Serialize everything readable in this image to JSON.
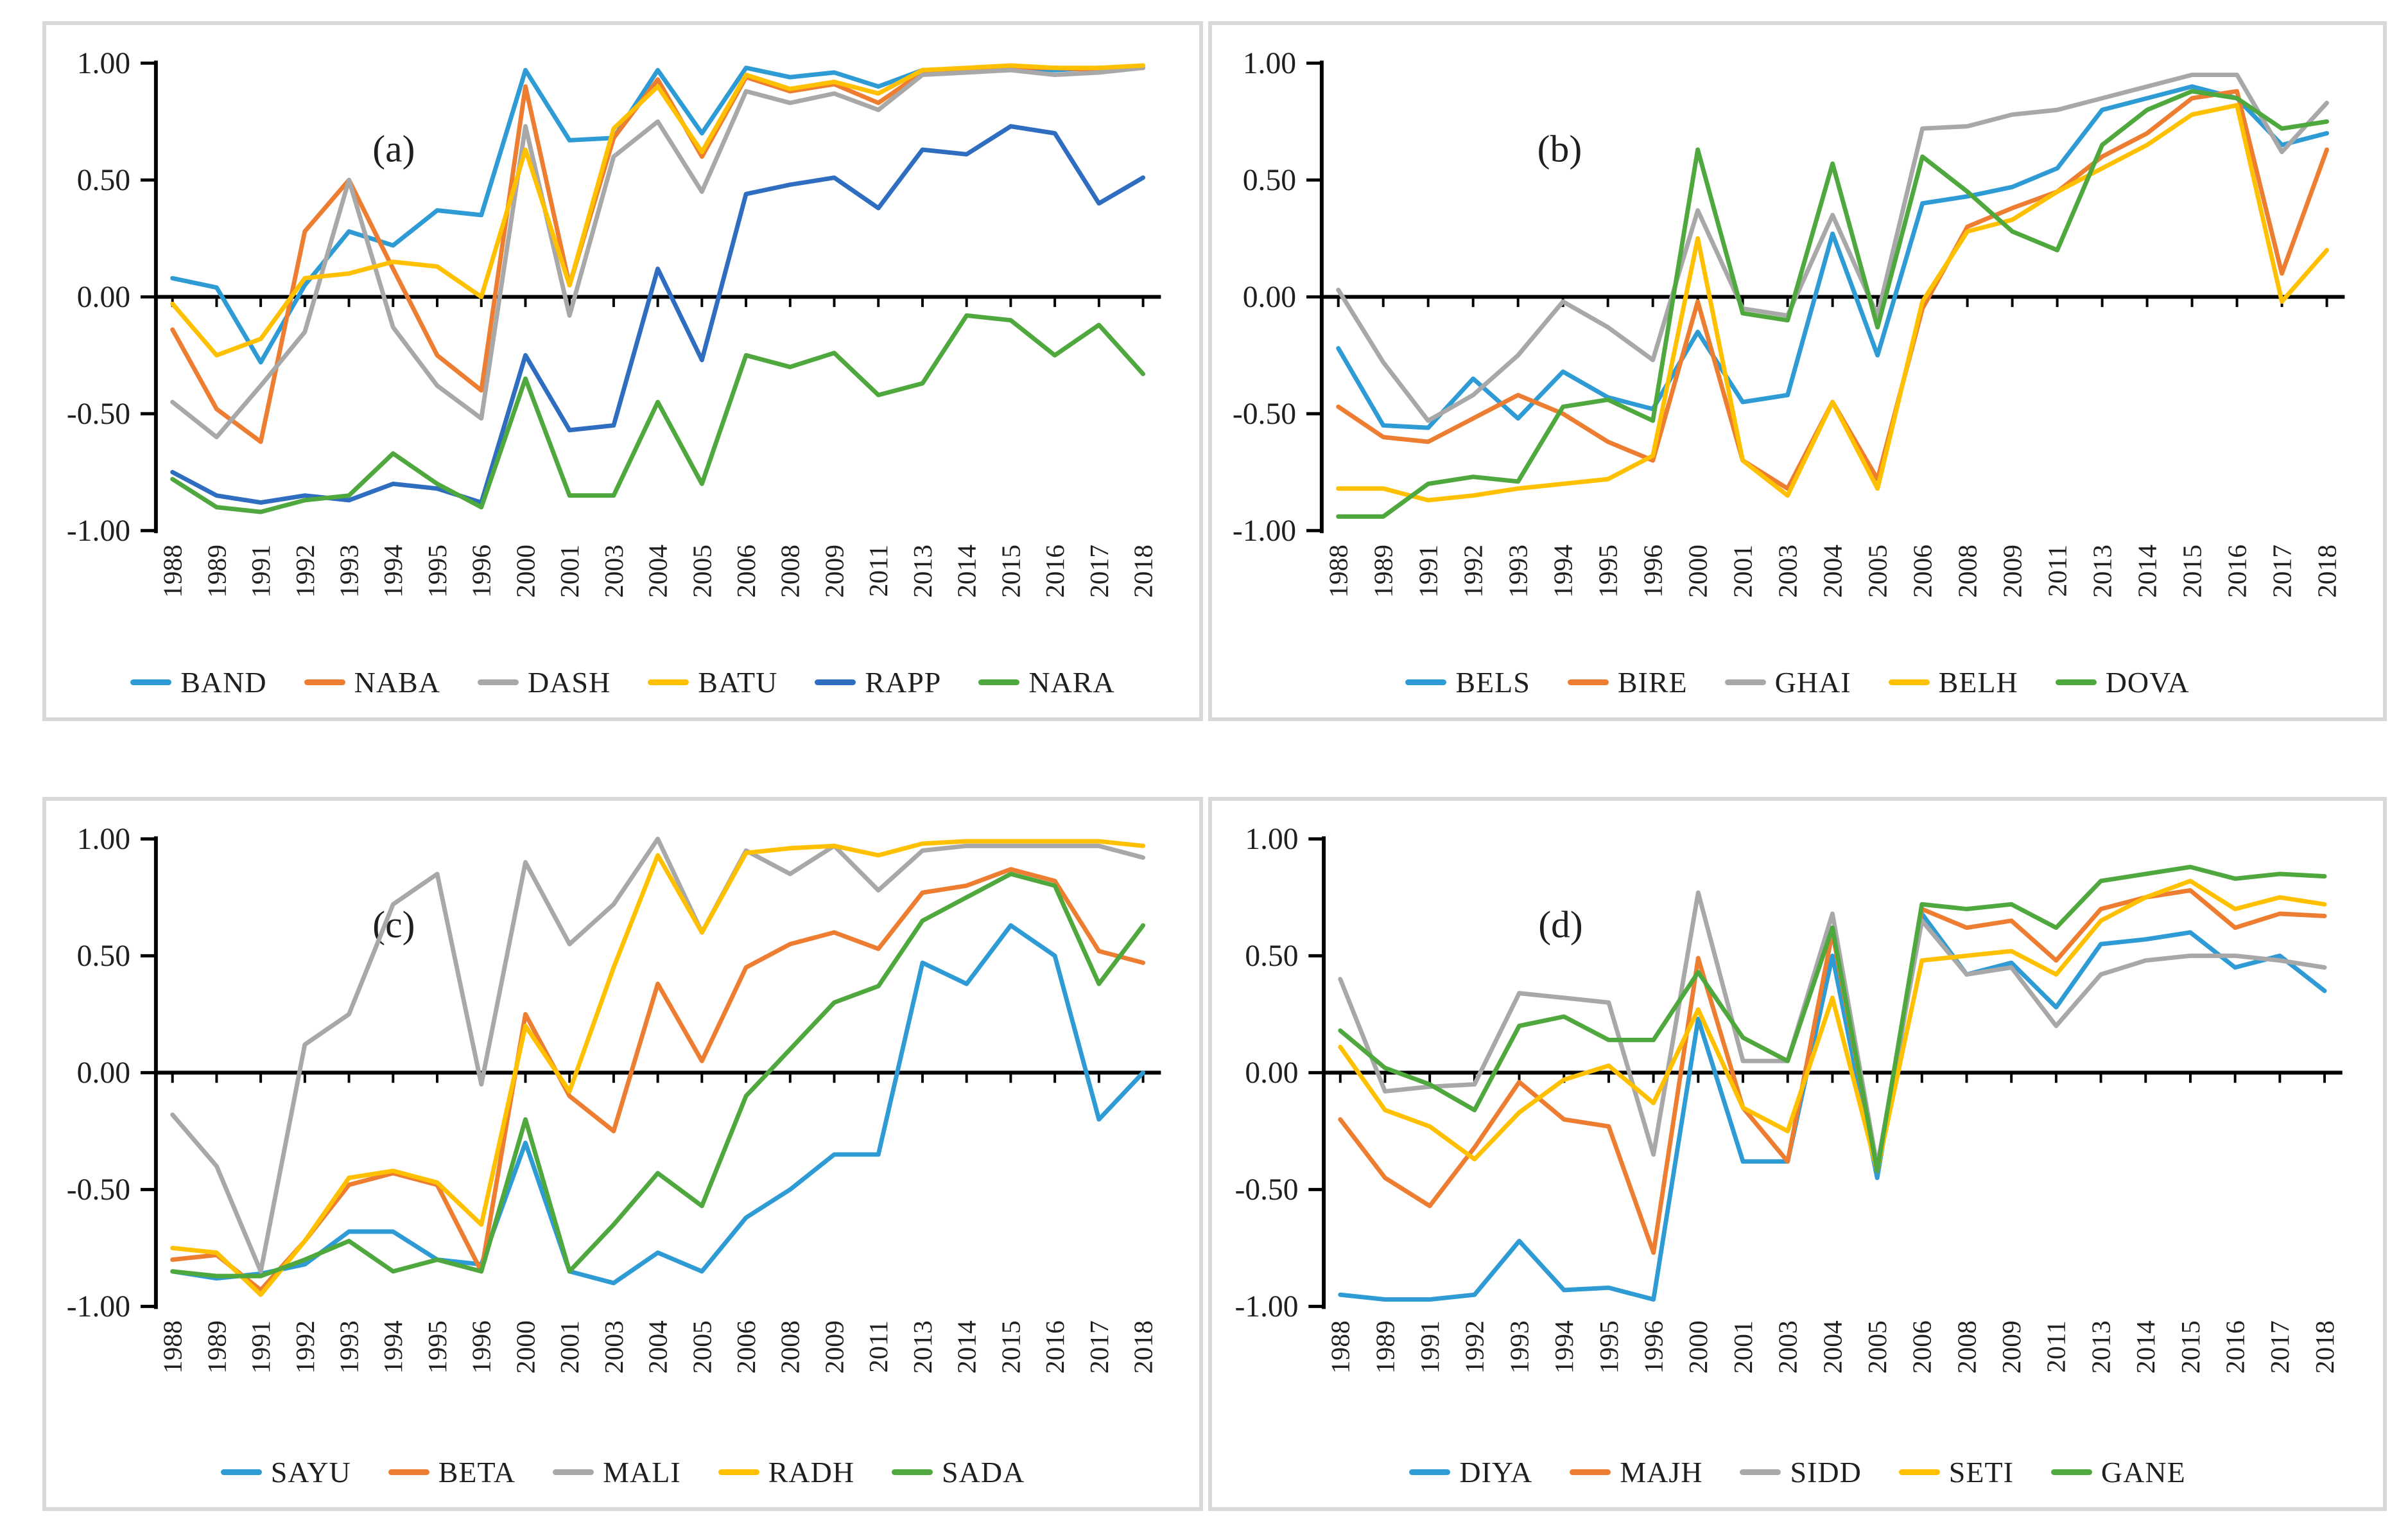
{
  "page": {
    "background": "#ffffff",
    "panel_border_color": "#d9d9d9"
  },
  "colors": {
    "light_blue": "#2E9BD5",
    "orange": "#ED7D31",
    "gray": "#A8A8A8",
    "gold": "#FFC000",
    "blue": "#2E6DBF",
    "green": "#4FA83D",
    "axis": "#000000",
    "text": "#1f1f1f"
  },
  "chart_data": [
    {
      "type": "line",
      "panel_label": "(a)",
      "legend_position": "bottom",
      "grid": false,
      "ylim": [
        -1.0,
        1.0
      ],
      "y_tick_labels": [
        "1.00",
        "0.50",
        "0.00",
        "-0.50",
        "-1.00"
      ],
      "y_tick_values": [
        1.0,
        0.5,
        0.0,
        -0.5,
        -1.0
      ],
      "x": [
        "1988",
        "1989",
        "1991",
        "1992",
        "1993",
        "1994",
        "1995",
        "1996",
        "2000",
        "2001",
        "2003",
        "2004",
        "2005",
        "2006",
        "2008",
        "2009",
        "2011",
        "2013",
        "2014",
        "2015",
        "2016",
        "2017",
        "2018"
      ],
      "series": [
        {
          "name": "BAND",
          "color": "#2E9BD5",
          "values": [
            0.08,
            0.04,
            -0.28,
            0.05,
            0.28,
            0.22,
            0.37,
            0.35,
            0.97,
            0.67,
            0.68,
            0.97,
            0.7,
            0.98,
            0.94,
            0.96,
            0.9,
            0.97,
            0.97,
            0.98,
            0.97,
            0.98,
            0.98
          ]
        },
        {
          "name": "NABA",
          "color": "#ED7D31",
          "values": [
            -0.14,
            -0.48,
            -0.62,
            0.28,
            0.5,
            0.12,
            -0.25,
            -0.4,
            0.9,
            0.05,
            0.68,
            0.93,
            0.6,
            0.94,
            0.88,
            0.91,
            0.83,
            0.96,
            0.97,
            0.98,
            0.98,
            0.97,
            0.98
          ]
        },
        {
          "name": "DASH",
          "color": "#A8A8A8",
          "values": [
            -0.45,
            -0.6,
            -0.38,
            -0.15,
            0.5,
            -0.13,
            -0.38,
            -0.52,
            0.73,
            -0.08,
            0.6,
            0.75,
            0.45,
            0.88,
            0.83,
            0.87,
            0.8,
            0.95,
            0.96,
            0.97,
            0.95,
            0.96,
            0.98
          ]
        },
        {
          "name": "BATU",
          "color": "#FFC000",
          "values": [
            -0.03,
            -0.25,
            -0.18,
            0.08,
            0.1,
            0.15,
            0.13,
            0.0,
            0.63,
            0.05,
            0.72,
            0.9,
            0.62,
            0.95,
            0.89,
            0.92,
            0.87,
            0.97,
            0.98,
            0.99,
            0.98,
            0.98,
            0.99
          ]
        },
        {
          "name": "RAPP",
          "color": "#2E6DBF",
          "values": [
            -0.75,
            -0.85,
            -0.88,
            -0.85,
            -0.87,
            -0.8,
            -0.82,
            -0.88,
            -0.25,
            -0.57,
            -0.55,
            0.12,
            -0.27,
            0.44,
            0.48,
            0.51,
            0.38,
            0.63,
            0.61,
            0.73,
            0.7,
            0.4,
            0.51
          ]
        },
        {
          "name": "NARA",
          "color": "#4FA83D",
          "values": [
            -0.78,
            -0.9,
            -0.92,
            -0.87,
            -0.85,
            -0.67,
            -0.8,
            -0.9,
            -0.35,
            -0.85,
            -0.85,
            -0.45,
            -0.8,
            -0.25,
            -0.3,
            -0.24,
            -0.42,
            -0.37,
            -0.08,
            -0.1,
            -0.25,
            -0.12,
            -0.33
          ]
        }
      ]
    },
    {
      "type": "line",
      "panel_label": "(b)",
      "legend_position": "bottom",
      "grid": false,
      "ylim": [
        -1.0,
        1.0
      ],
      "y_tick_labels": [
        "1.00",
        "0.50",
        "0.00",
        "-0.50",
        "-1.00"
      ],
      "y_tick_values": [
        1.0,
        0.5,
        0.0,
        -0.5,
        -1.0
      ],
      "x": [
        "1988",
        "1989",
        "1991",
        "1992",
        "1993",
        "1994",
        "1995",
        "1996",
        "2000",
        "2001",
        "2003",
        "2004",
        "2005",
        "2006",
        "2008",
        "2009",
        "2011",
        "2013",
        "2014",
        "2015",
        "2016",
        "2017",
        "2018"
      ],
      "series": [
        {
          "name": "BELS",
          "color": "#2E9BD5",
          "values": [
            -0.22,
            -0.55,
            -0.56,
            -0.35,
            -0.52,
            -0.32,
            -0.43,
            -0.48,
            -0.15,
            -0.45,
            -0.42,
            0.27,
            -0.25,
            0.4,
            0.43,
            0.47,
            0.55,
            0.8,
            0.85,
            0.9,
            0.85,
            0.65,
            0.7
          ]
        },
        {
          "name": "BIRE",
          "color": "#ED7D31",
          "values": [
            -0.47,
            -0.6,
            -0.62,
            -0.52,
            -0.42,
            -0.5,
            -0.62,
            -0.7,
            -0.02,
            -0.7,
            -0.82,
            -0.45,
            -0.78,
            -0.05,
            0.3,
            0.38,
            0.45,
            0.6,
            0.7,
            0.85,
            0.88,
            0.1,
            0.63
          ]
        },
        {
          "name": "GHAI",
          "color": "#A8A8A8",
          "values": [
            0.03,
            -0.28,
            -0.53,
            -0.42,
            -0.25,
            -0.02,
            -0.13,
            -0.27,
            0.37,
            -0.05,
            -0.08,
            0.35,
            -0.08,
            0.72,
            0.73,
            0.78,
            0.8,
            0.85,
            0.9,
            0.95,
            0.95,
            0.62,
            0.83
          ]
        },
        {
          "name": "BELH",
          "color": "#FFC000",
          "values": [
            -0.82,
            -0.82,
            -0.87,
            -0.85,
            -0.82,
            -0.8,
            -0.78,
            -0.68,
            0.25,
            -0.7,
            -0.85,
            -0.45,
            -0.82,
            -0.02,
            0.28,
            0.33,
            0.45,
            0.55,
            0.65,
            0.78,
            0.82,
            -0.02,
            0.2
          ]
        },
        {
          "name": "DOVA",
          "color": "#4FA83D",
          "values": [
            -0.94,
            -0.94,
            -0.8,
            -0.77,
            -0.79,
            -0.47,
            -0.44,
            -0.53,
            0.63,
            -0.07,
            -0.1,
            0.57,
            -0.13,
            0.6,
            0.45,
            0.28,
            0.2,
            0.65,
            0.8,
            0.88,
            0.85,
            0.72,
            0.75
          ]
        }
      ]
    },
    {
      "type": "line",
      "panel_label": "(c)",
      "legend_position": "bottom",
      "grid": false,
      "ylim": [
        -1.0,
        1.0
      ],
      "y_tick_labels": [
        "1.00",
        "0.50",
        "0.00",
        "-0.50",
        "-1.00"
      ],
      "y_tick_values": [
        1.0,
        0.5,
        0.0,
        -0.5,
        -1.0
      ],
      "x": [
        "1988",
        "1989",
        "1991",
        "1992",
        "1993",
        "1994",
        "1995",
        "1996",
        "2000",
        "2001",
        "2003",
        "2004",
        "2005",
        "2006",
        "2008",
        "2009",
        "2011",
        "2013",
        "2014",
        "2015",
        "2016",
        "2017",
        "2018"
      ],
      "series": [
        {
          "name": "SAYU",
          "color": "#2E9BD5",
          "values": [
            -0.85,
            -0.88,
            -0.86,
            -0.82,
            -0.68,
            -0.68,
            -0.8,
            -0.82,
            -0.3,
            -0.85,
            -0.9,
            -0.77,
            -0.85,
            -0.62,
            -0.5,
            -0.35,
            -0.35,
            0.47,
            0.38,
            0.63,
            0.5,
            -0.2,
            0.0
          ]
        },
        {
          "name": "BETA",
          "color": "#ED7D31",
          "values": [
            -0.8,
            -0.78,
            -0.93,
            -0.72,
            -0.48,
            -0.43,
            -0.48,
            -0.85,
            0.25,
            -0.1,
            -0.25,
            0.38,
            0.05,
            0.45,
            0.55,
            0.6,
            0.53,
            0.77,
            0.8,
            0.87,
            0.82,
            0.52,
            0.47
          ]
        },
        {
          "name": "MALI",
          "color": "#A8A8A8",
          "values": [
            -0.18,
            -0.4,
            -0.85,
            0.12,
            0.25,
            0.72,
            0.85,
            -0.05,
            0.9,
            0.55,
            0.72,
            1.0,
            0.6,
            0.95,
            0.85,
            0.97,
            0.78,
            0.95,
            0.97,
            0.97,
            0.97,
            0.97,
            0.92
          ]
        },
        {
          "name": "RADH",
          "color": "#FFC000",
          "values": [
            -0.75,
            -0.77,
            -0.95,
            -0.72,
            -0.45,
            -0.42,
            -0.47,
            -0.65,
            0.2,
            -0.08,
            0.45,
            0.93,
            0.6,
            0.94,
            0.96,
            0.97,
            0.93,
            0.98,
            0.99,
            0.99,
            0.99,
            0.99,
            0.97
          ]
        },
        {
          "name": "SADA",
          "color": "#4FA83D",
          "values": [
            -0.85,
            -0.87,
            -0.87,
            -0.8,
            -0.72,
            -0.85,
            -0.8,
            -0.85,
            -0.2,
            -0.85,
            -0.65,
            -0.43,
            -0.57,
            -0.1,
            0.1,
            0.3,
            0.37,
            0.65,
            0.75,
            0.85,
            0.8,
            0.38,
            0.63
          ]
        }
      ]
    },
    {
      "type": "line",
      "panel_label": "(d)",
      "legend_position": "bottom",
      "grid": false,
      "ylim": [
        -1.0,
        1.0
      ],
      "y_tick_labels": [
        "1.00",
        "0.50",
        "0.00",
        "-0.50",
        "-1.00"
      ],
      "y_tick_values": [
        1.0,
        0.5,
        0.0,
        -0.5,
        -1.0
      ],
      "x": [
        "1988",
        "1989",
        "1991",
        "1992",
        "1993",
        "1994",
        "1995",
        "1996",
        "2000",
        "2001",
        "2003",
        "2004",
        "2005",
        "2006",
        "2008",
        "2009",
        "2011",
        "2013",
        "2014",
        "2015",
        "2016",
        "2017",
        "2018"
      ],
      "series": [
        {
          "name": "DIYA",
          "color": "#2E9BD5",
          "values": [
            -0.95,
            -0.97,
            -0.97,
            -0.95,
            -0.72,
            -0.93,
            -0.92,
            -0.97,
            0.23,
            -0.38,
            -0.38,
            0.5,
            -0.45,
            0.68,
            0.42,
            0.47,
            0.28,
            0.55,
            0.57,
            0.6,
            0.45,
            0.5,
            0.35
          ]
        },
        {
          "name": "MAJH",
          "color": "#ED7D31",
          "values": [
            -0.2,
            -0.45,
            -0.57,
            -0.32,
            -0.04,
            -0.2,
            -0.23,
            -0.77,
            0.49,
            -0.15,
            -0.38,
            0.6,
            -0.42,
            0.7,
            0.62,
            0.65,
            0.48,
            0.7,
            0.75,
            0.78,
            0.62,
            0.68,
            0.67
          ]
        },
        {
          "name": "SIDD",
          "color": "#A8A8A8",
          "values": [
            0.4,
            -0.08,
            -0.06,
            -0.05,
            0.34,
            0.32,
            0.3,
            -0.35,
            0.77,
            0.05,
            0.05,
            0.68,
            -0.4,
            0.65,
            0.42,
            0.45,
            0.2,
            0.42,
            0.48,
            0.5,
            0.5,
            0.48,
            0.45
          ]
        },
        {
          "name": "SETI",
          "color": "#FFC000",
          "values": [
            0.11,
            -0.16,
            -0.23,
            -0.37,
            -0.17,
            -0.03,
            0.03,
            -0.13,
            0.27,
            -0.15,
            -0.25,
            0.32,
            -0.42,
            0.48,
            0.5,
            0.52,
            0.42,
            0.65,
            0.75,
            0.82,
            0.7,
            0.75,
            0.72
          ]
        },
        {
          "name": "GANE",
          "color": "#4FA83D",
          "values": [
            0.18,
            0.02,
            -0.05,
            -0.16,
            0.2,
            0.24,
            0.14,
            0.14,
            0.43,
            0.15,
            0.05,
            0.62,
            -0.42,
            0.72,
            0.7,
            0.72,
            0.62,
            0.82,
            0.85,
            0.88,
            0.83,
            0.85,
            0.84
          ]
        }
      ]
    }
  ]
}
